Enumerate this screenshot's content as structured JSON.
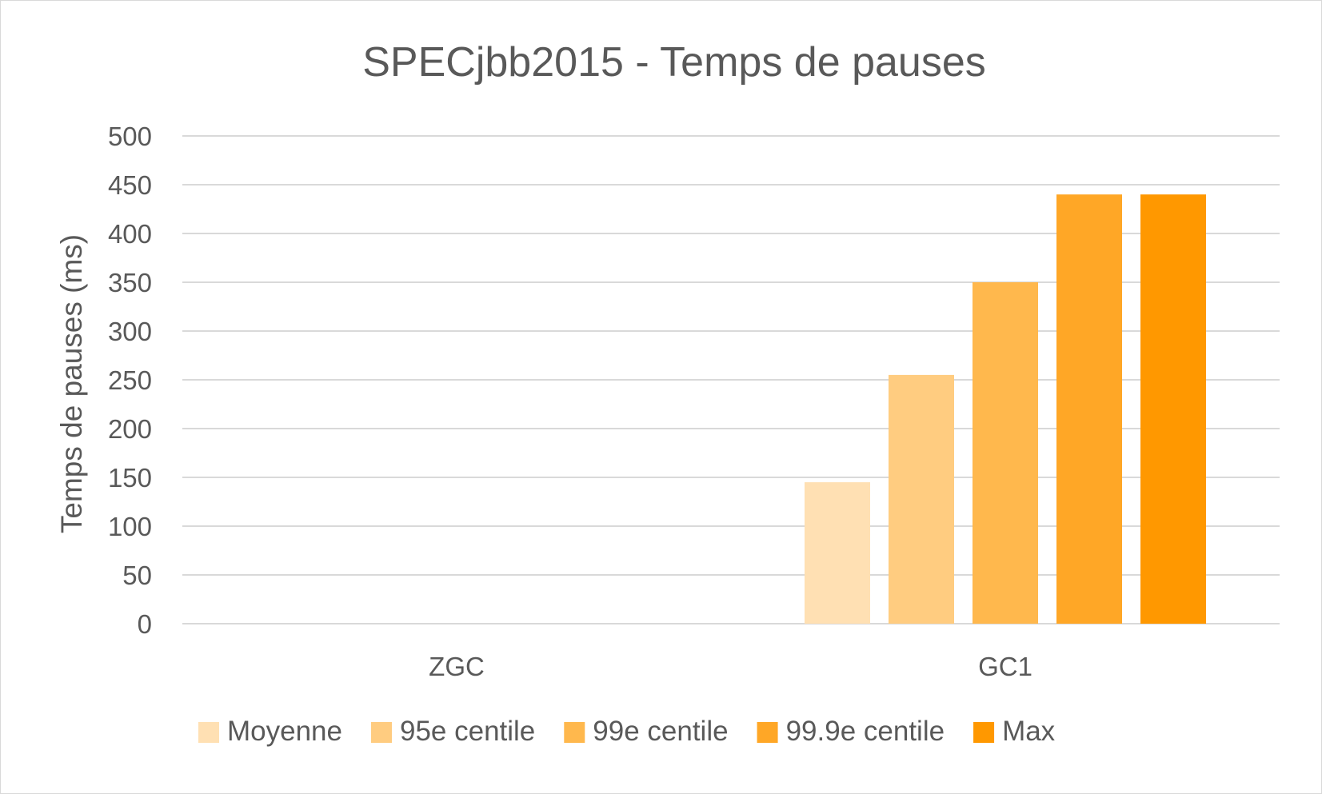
{
  "chart_data": {
    "type": "bar",
    "title": "SPECjbb2015 - Temps de pauses",
    "xlabel": "",
    "ylabel": "Temps de pauses (ms)",
    "ylim": [
      0,
      500
    ],
    "yticks": [
      0,
      50,
      100,
      150,
      200,
      250,
      300,
      350,
      400,
      450,
      500
    ],
    "categories": [
      "ZGC",
      "GC1"
    ],
    "series": [
      {
        "name": "Moyenne",
        "values": [
          0,
          145
        ],
        "color": "#FFE0B3"
      },
      {
        "name": "95e centile",
        "values": [
          0,
          255
        ],
        "color": "#FFCC80"
      },
      {
        "name": "99e centile",
        "values": [
          0,
          350
        ],
        "color": "#FFB84D"
      },
      {
        "name": "99.9e centile",
        "values": [
          0,
          440
        ],
        "color": "#FFA726"
      },
      {
        "name": "Max",
        "values": [
          0,
          440
        ],
        "color": "#FF9800"
      }
    ],
    "grid": true,
    "legend_position": "bottom"
  }
}
